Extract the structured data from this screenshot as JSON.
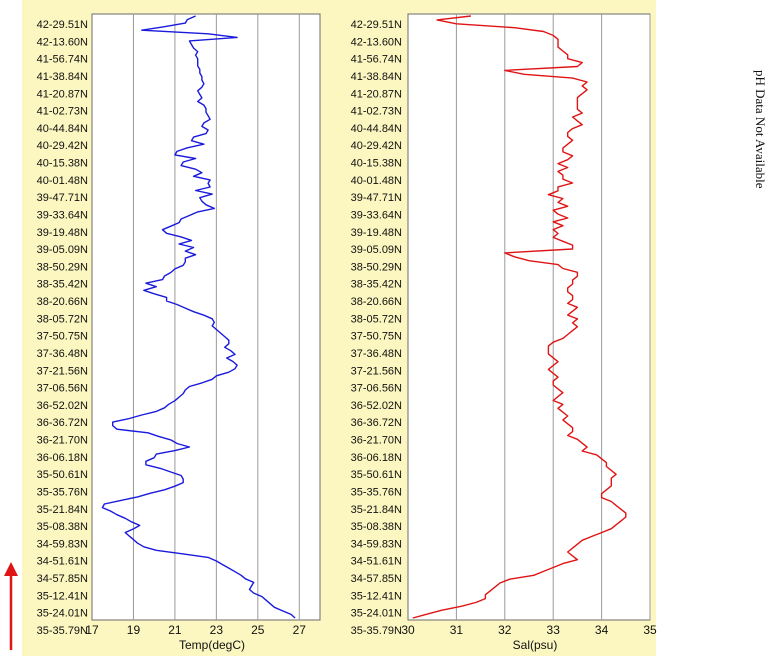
{
  "latitudes": [
    "42-29.51N",
    "42-13.60N",
    "41-56.74N",
    "41-38.84N",
    "41-20.87N",
    "41-02.73N",
    "40-44.84N",
    "40-29.42N",
    "40-15.38N",
    "40-01.48N",
    "39-47.71N",
    "39-33.64N",
    "39-19.48N",
    "39-05.09N",
    "38-50.29N",
    "38-35.42N",
    "38-20.66N",
    "38-05.72N",
    "37-50.75N",
    "37-36.48N",
    "37-21.56N",
    "37-06.56N",
    "36-52.02N",
    "36-36.72N",
    "36-21.70N",
    "36-06.18N",
    "35-50.61N",
    "35-35.76N",
    "35-21.84N",
    "35-08.38N",
    "34-59.83N",
    "34-51.61N",
    "34-57.85N",
    "35-12.41N",
    "35-24.01N",
    "35-35.79N"
  ],
  "ph_note": "pH Data Not Available",
  "chart_data": [
    {
      "type": "line",
      "orientation": "vertical-profile",
      "xlabel": "Temp(degC)",
      "xlim": [
        17,
        28
      ],
      "xticks": [
        17,
        19,
        21,
        23,
        25,
        27
      ],
      "color": "#1a1adc",
      "values": [
        22.0,
        21.6,
        21.5,
        20.5,
        19.4,
        22.6,
        24.0,
        21.7,
        21.8,
        21.9,
        22.1,
        22.0,
        22.1,
        22.1,
        22.1,
        22.2,
        22.2,
        22.3,
        22.3,
        22.4,
        22.3,
        22.1,
        22.2,
        22.3,
        22.1,
        22.4,
        22.5,
        22.5,
        22.6,
        22.7,
        22.4,
        22.3,
        22.6,
        22.5,
        21.9,
        21.8,
        22.4,
        21.6,
        21.1,
        21.0,
        22.0,
        21.4,
        21.3,
        22.0,
        22.3,
        21.9,
        22.7,
        22.6,
        22.7,
        22.0,
        22.8,
        22.2,
        22.3,
        22.5,
        22.9,
        22.1,
        21.7,
        21.3,
        21.2,
        20.8,
        20.4,
        20.6,
        21.3,
        21.8,
        21.2,
        21.9,
        21.5,
        22.0,
        21.5,
        21.5,
        21.4,
        21.0,
        20.8,
        20.5,
        20.4,
        19.6,
        20.1,
        19.5,
        20.0,
        20.6,
        20.6,
        21.1,
        21.5,
        21.9,
        22.4,
        22.8,
        22.9,
        22.8,
        23.0,
        23.2,
        23.4,
        23.6,
        23.6,
        23.4,
        23.7,
        23.9,
        23.5,
        23.8,
        24.0,
        23.9,
        23.6,
        23.0,
        22.8,
        22.3,
        21.7,
        21.5,
        21.4,
        21.2,
        21.0,
        20.7,
        20.5,
        20.1,
        19.4,
        18.8,
        18.0,
        18.0,
        18.2,
        19.7,
        20.2,
        20.8,
        21.1,
        21.7,
        21.0,
        20.1,
        20.0,
        19.6,
        19.6,
        20.3,
        20.8,
        21.3,
        21.4,
        21.4,
        21.0,
        20.5,
        19.8,
        19.2,
        18.4,
        17.6,
        17.5,
        17.9,
        18.2,
        18.6,
        18.9,
        19.3,
        19.0,
        18.6,
        18.8,
        19.0,
        19.2,
        19.5,
        20.1,
        21.4,
        22.6,
        23.0,
        23.3,
        23.6,
        23.9,
        24.2,
        24.4,
        24.8,
        24.7,
        24.6,
        24.8,
        25.2,
        25.4,
        25.6,
        25.8,
        26.2,
        26.6,
        26.8
      ]
    },
    {
      "type": "line",
      "orientation": "vertical-profile",
      "xlabel": "Sal(psu)",
      "xlim": [
        30,
        35
      ],
      "xticks": [
        30,
        31,
        32,
        33,
        34,
        35
      ],
      "color": "#e01414",
      "values": [
        31.3,
        30.6,
        31.0,
        32.2,
        32.8,
        33.0,
        33.1,
        33.1,
        33.1,
        33.2,
        33.3,
        33.3,
        33.6,
        33.5,
        32.0,
        32.4,
        33.4,
        33.7,
        33.6,
        33.7,
        33.6,
        33.5,
        33.5,
        33.5,
        33.5,
        33.6,
        33.4,
        33.5,
        33.6,
        33.4,
        33.3,
        33.3,
        33.4,
        33.3,
        33.2,
        33.2,
        33.4,
        33.3,
        33.1,
        33.3,
        33.1,
        33.2,
        33.2,
        33.4,
        33.1,
        33.1,
        32.9,
        33.2,
        33.1,
        33.3,
        33.0,
        33.1,
        33.3,
        33.0,
        33.2,
        33.0,
        33.1,
        33.0,
        33.2,
        33.4,
        33.4,
        32.0,
        32.2,
        32.5,
        33.1,
        33.2,
        33.5,
        33.5,
        33.4,
        33.4,
        33.3,
        33.3,
        33.4,
        33.4,
        33.3,
        33.5,
        33.4,
        33.3,
        33.5,
        33.4,
        33.5,
        33.4,
        33.3,
        33.2,
        33.0,
        32.9,
        32.9,
        32.9,
        33.0,
        33.1,
        33.0,
        32.9,
        33.0,
        33.1,
        33.0,
        33.0,
        33.1,
        33.2,
        33.1,
        33.0,
        33.2,
        33.1,
        33.2,
        33.3,
        33.2,
        33.3,
        33.4,
        33.4,
        33.3,
        33.5,
        33.6,
        33.7,
        33.6,
        33.9,
        34.0,
        34.1,
        34.1,
        34.2,
        34.3,
        34.2,
        34.2,
        34.2,
        34.1,
        34.0,
        34.0,
        34.2,
        34.3,
        34.4,
        34.5,
        34.5,
        34.4,
        34.3,
        34.2,
        34.0,
        33.8,
        33.6,
        33.5,
        33.4,
        33.3,
        33.4,
        33.5,
        33.2,
        33.0,
        32.8,
        32.6,
        32.1,
        31.9,
        31.8,
        31.7,
        31.6,
        31.6,
        31.4,
        31.1,
        30.7,
        30.4,
        30.1
      ]
    }
  ]
}
